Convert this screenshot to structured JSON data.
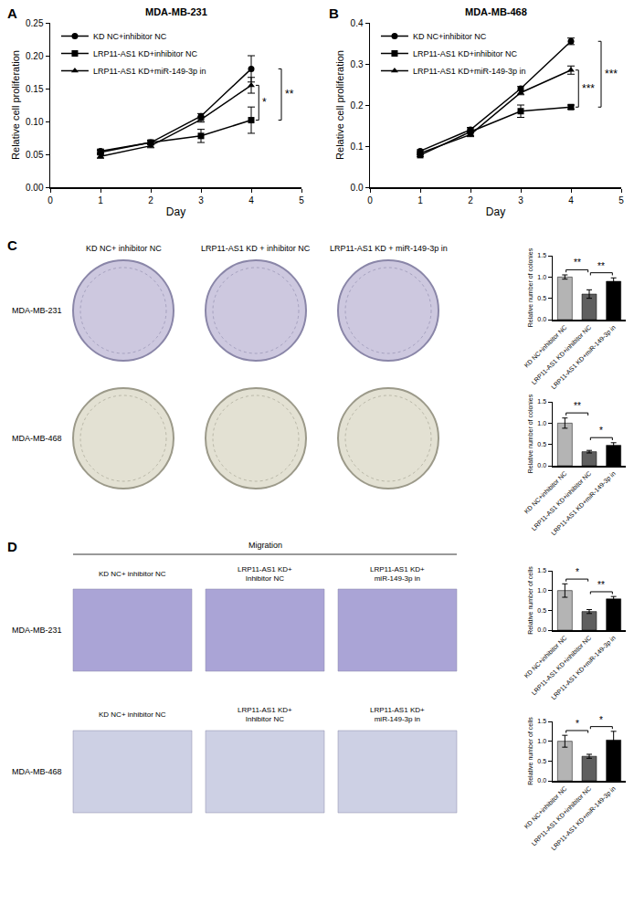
{
  "panel_labels": [
    "A",
    "B",
    "C",
    "D"
  ],
  "chart_data": [
    {
      "type": "line",
      "title": "MDA-MB-231",
      "xlabel": "Day",
      "ylabel": "Relative cell proliferation",
      "x": [
        1,
        2,
        3,
        4
      ],
      "xlim": [
        0,
        5
      ],
      "xticks": [
        0,
        1,
        2,
        3,
        4,
        5
      ],
      "ylim": [
        0,
        0.25
      ],
      "yticks": [
        {
          "value": 0,
          "label": "0.00"
        },
        0.05,
        {
          "value": 0.1,
          "label": "0.10"
        },
        0.15,
        {
          "value": 0.2,
          "label": "0.20"
        },
        0.25
      ],
      "grid": false,
      "legend": "upper left",
      "series": [
        {
          "name": "KD NC+inhibitor NC",
          "color": "#000000",
          "marker": "circle",
          "values": [
            0.055,
            0.068,
            0.108,
            0.18
          ],
          "errors": [
            0.003,
            0.003,
            0.004,
            0.02
          ]
        },
        {
          "name": "LRP11-AS1 KD+inhibitor NC",
          "color": "#000000",
          "marker": "square",
          "values": [
            0.053,
            0.068,
            0.078,
            0.102
          ],
          "errors": [
            0.003,
            0.003,
            0.01,
            0.02
          ]
        },
        {
          "name": "LRP11-AS1 KD+miR-149-3p in",
          "color": "#000000",
          "marker": "triangle",
          "values": [
            0.047,
            0.063,
            0.103,
            0.155
          ],
          "errors": [
            0.003,
            0.003,
            0.004,
            0.012
          ]
        }
      ],
      "significance": [
        {
          "between": [
            "LRP11-AS1 KD+inhibitor NC",
            "LRP11-AS1 KD+miR-149-3p in"
          ],
          "label": "*"
        },
        {
          "between": [
            "LRP11-AS1 KD+inhibitor NC",
            "KD NC+inhibitor NC"
          ],
          "label": "**"
        }
      ]
    },
    {
      "type": "line",
      "title": "MDA-MB-468",
      "xlabel": "Day",
      "ylabel": "Relative cell proliferation",
      "x": [
        1,
        2,
        3,
        4
      ],
      "xlim": [
        0,
        5
      ],
      "xticks": [
        0,
        1,
        2,
        3,
        4,
        5
      ],
      "ylim": [
        0,
        0.4
      ],
      "yticks": [
        {
          "value": 0,
          "label": "0.0"
        },
        0.1,
        0.2,
        0.3,
        0.4
      ],
      "grid": false,
      "legend": "upper left",
      "series": [
        {
          "name": "KD NC+inhibitor NC",
          "color": "#000000",
          "marker": "circle",
          "values": [
            0.088,
            0.14,
            0.24,
            0.355
          ],
          "errors": [
            0.003,
            0.005,
            0.005,
            0.008
          ]
        },
        {
          "name": "LRP11-AS1 KD+inhibitor NC",
          "color": "#000000",
          "marker": "square",
          "values": [
            0.078,
            0.135,
            0.185,
            0.195
          ],
          "errors": [
            0.003,
            0.01,
            0.015,
            0.005
          ]
        },
        {
          "name": "LRP11-AS1 KD+miR-149-3p in",
          "color": "#000000",
          "marker": "triangle",
          "values": [
            0.083,
            0.128,
            0.23,
            0.285
          ],
          "errors": [
            0.003,
            0.005,
            0.005,
            0.01
          ]
        }
      ],
      "significance": [
        {
          "between": [
            "LRP11-AS1 KD+inhibitor NC",
            "LRP11-AS1 KD+miR-149-3p in"
          ],
          "label": "***"
        },
        {
          "between": [
            "LRP11-AS1 KD+inhibitor NC",
            "KD NC+inhibitor NC"
          ],
          "label": "***"
        }
      ]
    },
    {
      "type": "bar",
      "ylabel": "Relative number of colonies",
      "categories": [
        "KD NC+inhibitor NC",
        "LRP11-AS1 KD+inhibitor NC",
        "LRP11-AS1 KD+miR-149-3p in"
      ],
      "values": [
        1.0,
        0.6,
        0.9
      ],
      "errors": [
        0.05,
        0.1,
        0.08
      ],
      "colors": [
        "#b4b4b4",
        "#5f5f5f",
        "#000000"
      ],
      "ylim": [
        0,
        1.5
      ],
      "yticks": [
        {
          "value": 0,
          "label": "0.0"
        },
        0.5,
        {
          "value": 1,
          "label": "1.0"
        },
        1.5
      ],
      "grid": false,
      "significance": [
        {
          "between": [
            "KD NC+inhibitor NC",
            "LRP11-AS1 KD+inhibitor NC"
          ],
          "label": "**"
        },
        {
          "between": [
            "LRP11-AS1 KD+inhibitor NC",
            "LRP11-AS1 KD+miR-149-3p in"
          ],
          "label": "**"
        }
      ]
    },
    {
      "type": "bar",
      "ylabel": "Relative number of colonies",
      "categories": [
        "KD NC+inhibitor NC",
        "LRP11-AS1 KD+inhibitor NC",
        "LRP11-AS1 KD+miR-149-3p in"
      ],
      "values": [
        1.0,
        0.33,
        0.48
      ],
      "errors": [
        0.12,
        0.03,
        0.06
      ],
      "colors": [
        "#b4b4b4",
        "#5f5f5f",
        "#000000"
      ],
      "ylim": [
        0,
        1.5
      ],
      "yticks": [
        {
          "value": 0,
          "label": "0.0"
        },
        0.5,
        {
          "value": 1,
          "label": "1.0"
        },
        1.5
      ],
      "grid": false,
      "significance": [
        {
          "between": [
            "KD NC+inhibitor NC",
            "LRP11-AS1 KD+inhibitor NC"
          ],
          "label": "**"
        },
        {
          "between": [
            "LRP11-AS1 KD+inhibitor NC",
            "LRP11-AS1 KD+miR-149-3p in"
          ],
          "label": "*"
        }
      ]
    },
    {
      "type": "bar",
      "ylabel": "Relative number of cells",
      "categories": [
        "KD NC+inhibitor NC",
        "LRP11-AS1 KD+inhibitor NC",
        "LRP11-AS1 KD+miR-149-3p in"
      ],
      "values": [
        1.0,
        0.47,
        0.79
      ],
      "errors": [
        0.17,
        0.05,
        0.06
      ],
      "colors": [
        "#b4b4b4",
        "#5f5f5f",
        "#000000"
      ],
      "ylim": [
        0,
        1.5
      ],
      "yticks": [
        {
          "value": 0,
          "label": "0.0"
        },
        0.5,
        {
          "value": 1,
          "label": "1.0"
        },
        1.5
      ],
      "grid": false,
      "significance": [
        {
          "between": [
            "KD NC+inhibitor NC",
            "LRP11-AS1 KD+inhibitor NC"
          ],
          "label": "*"
        },
        {
          "between": [
            "LRP11-AS1 KD+inhibitor NC",
            "LRP11-AS1 KD+miR-149-3p in"
          ],
          "label": "**"
        }
      ]
    },
    {
      "type": "bar",
      "ylabel": "Relative number of cells",
      "categories": [
        "KD NC+inhibitor NC",
        "LRP11-AS1 KD+inhibitor NC",
        "LRP11-AS1 KD+miR-149-3p in"
      ],
      "values": [
        1.0,
        0.62,
        1.03
      ],
      "errors": [
        0.15,
        0.05,
        0.22
      ],
      "colors": [
        "#b4b4b4",
        "#5f5f5f",
        "#000000"
      ],
      "ylim": [
        0,
        1.5
      ],
      "yticks": [
        {
          "value": 0,
          "label": "0.0"
        },
        0.5,
        {
          "value": 1,
          "label": "1.0"
        },
        1.5
      ],
      "grid": false,
      "significance": [
        {
          "between": [
            "KD NC+inhibitor NC",
            "LRP11-AS1 KD+inhibitor NC"
          ],
          "label": "*"
        },
        {
          "between": [
            "LRP11-AS1 KD+inhibitor NC",
            "LRP11-AS1 KD+miR-149-3p in"
          ],
          "label": "*"
        }
      ]
    }
  ],
  "colony_images": {
    "columns": [
      [
        "KD NC+ inhibitor NC"
      ],
      [
        "LRP11-AS1 KD + inhibitor NC"
      ],
      [
        "LRP11-AS1 KD + miR-149-3p in"
      ]
    ],
    "rows": [
      "MDA-MB-231",
      "MDA-MB-468"
    ]
  },
  "migration_images": {
    "title": "Migration",
    "columns": [
      [
        "KD NC+ inhibitor NC"
      ],
      [
        "LRP11-AS1 KD+",
        "Inhibitor NC"
      ],
      [
        "LRP11-AS1 KD+",
        "miR-149-3p in"
      ]
    ],
    "rows": [
      "MDA-MB-231",
      "MDA-MB-468"
    ]
  }
}
